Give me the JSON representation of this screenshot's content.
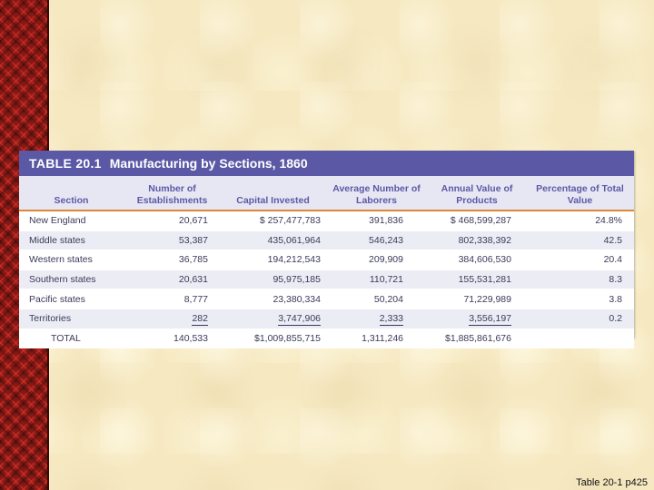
{
  "table": {
    "number": "TABLE 20.1",
    "title": "Manufacturing by Sections, 1860",
    "headers": [
      "Section",
      "Number of Establishments",
      "Capital Invested",
      "Average Number of Laborers",
      "Annual Value of Products",
      "Percentage of Total Value"
    ],
    "rows": [
      [
        "New England",
        "20,671",
        "$ 257,477,783",
        "391,836",
        "$ 468,599,287",
        "24.8%"
      ],
      [
        "Middle states",
        "53,387",
        "435,061,964",
        "546,243",
        "802,338,392",
        "42.5"
      ],
      [
        "Western states",
        "36,785",
        "194,212,543",
        "209,909",
        "384,606,530",
        "20.4"
      ],
      [
        "Southern states",
        "20,631",
        "95,975,185",
        "110,721",
        "155,531,281",
        "8.3"
      ],
      [
        "Pacific states",
        "8,777",
        "23,380,334",
        "50,204",
        "71,229,989",
        "3.8"
      ],
      [
        "Territories",
        "282",
        "3,747,906",
        "2,333",
        "3,556,197",
        "0.2"
      ]
    ],
    "total": [
      "TOTAL",
      "140,533",
      "$1,009,855,715",
      "1,311,246",
      "$1,885,861,676",
      ""
    ]
  },
  "caption": "Table 20-1 p425",
  "colors": {
    "title_bar": "#5b59a6",
    "header_bg": "#e7e7f3",
    "header_rule": "#e0883a",
    "stripe": "#ececf5",
    "background": "#f6e9c2",
    "side_strip": "#8e1612"
  }
}
